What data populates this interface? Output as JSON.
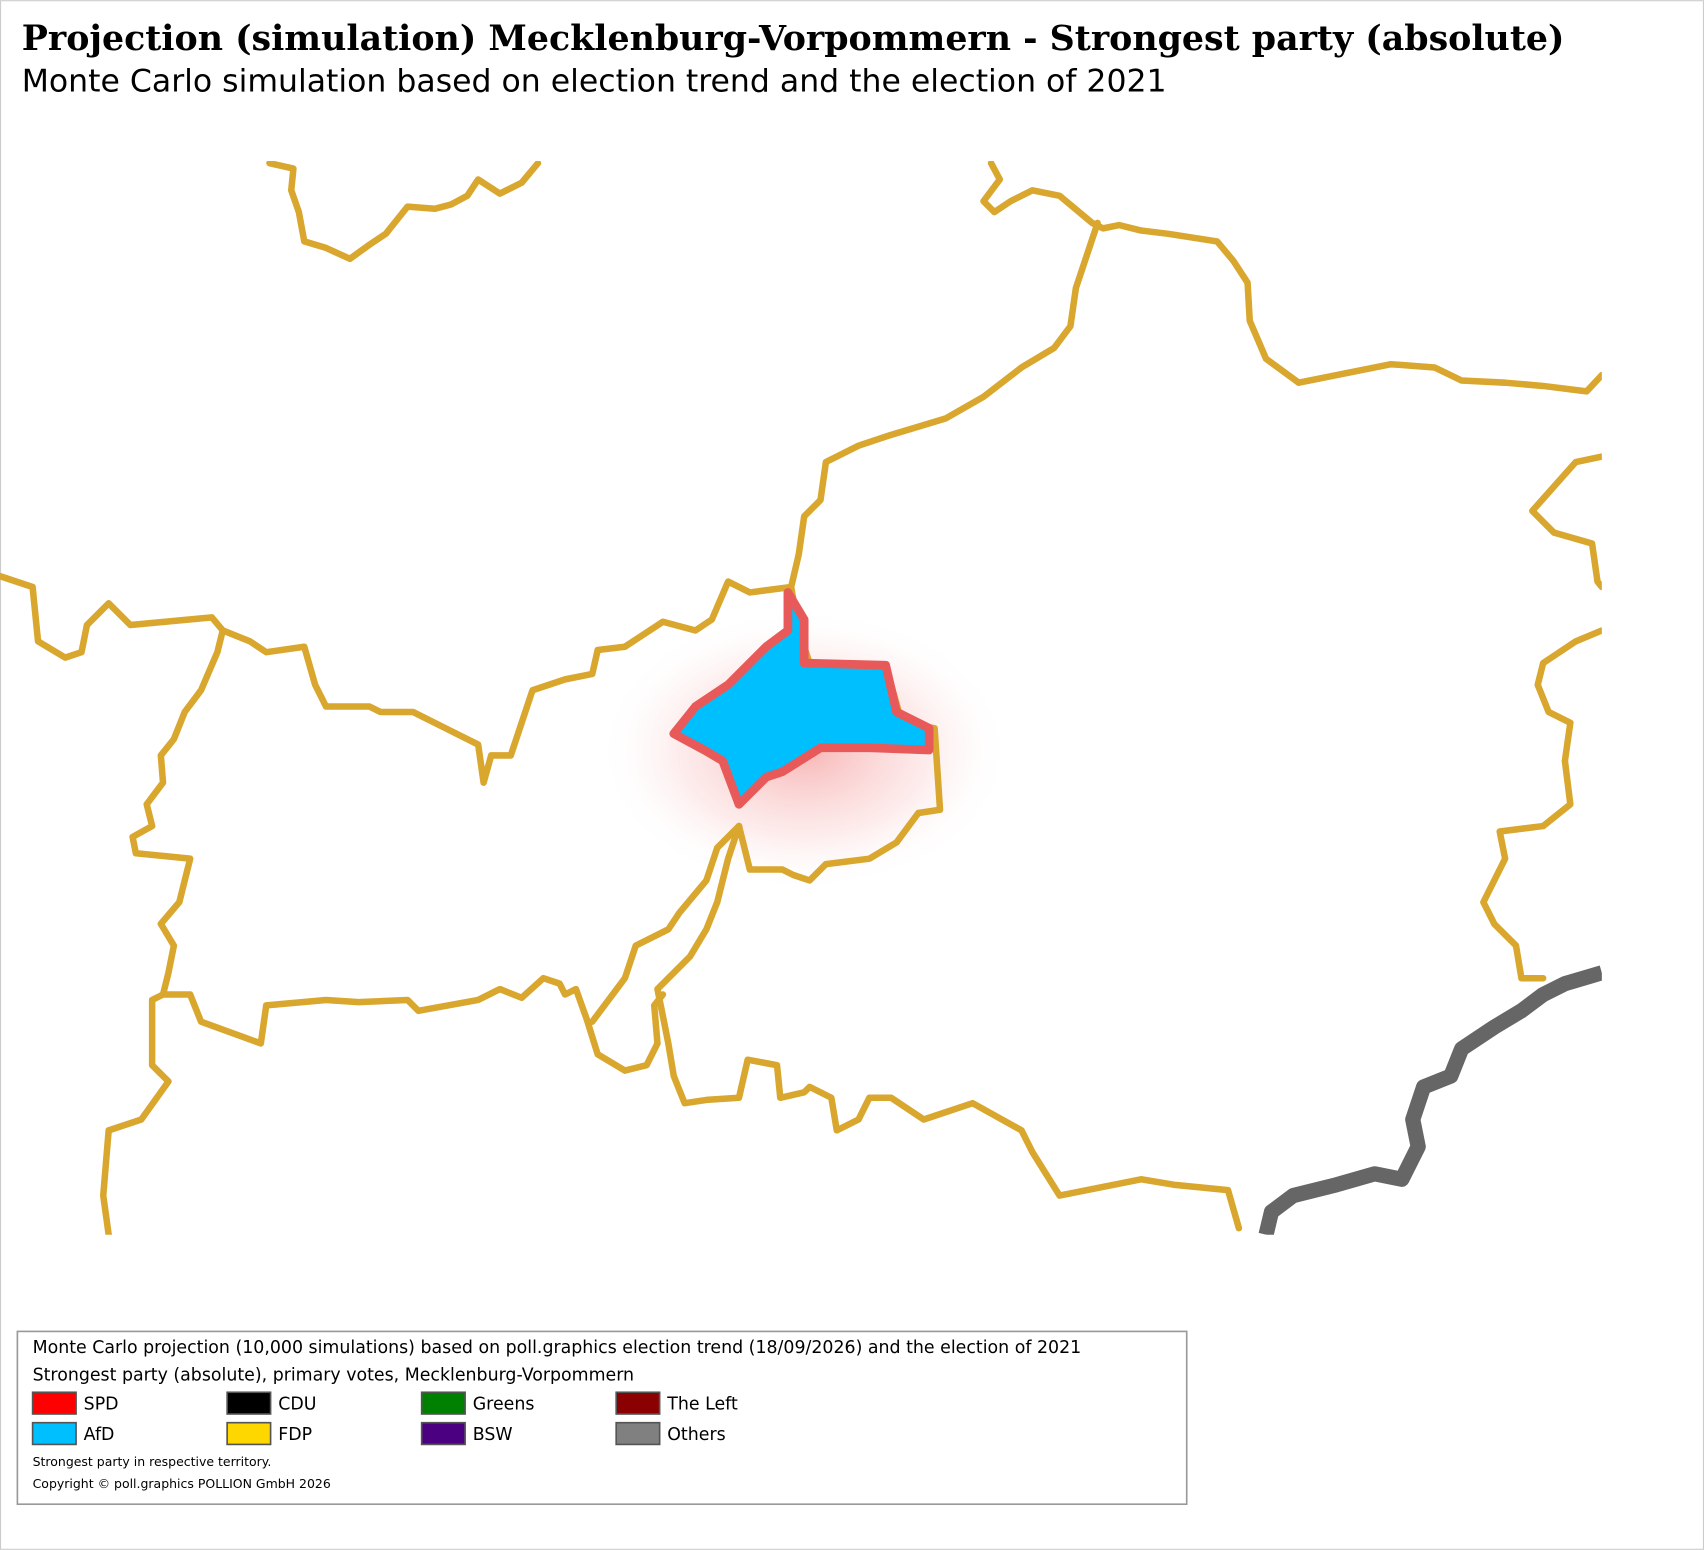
{
  "header": {
    "title": "Projection (simulation) Mecklenburg-Vorpommern - Strongest party (absolute)",
    "subtitle": "Monte Carlo simulation based on election trend and the election of 2021"
  },
  "legend": {
    "lines": [
      "Monte Carlo projection (10,000 simulations) based on poll.graphics election trend (18/09/2026) and the election of 2021",
      "Strongest party (absolute), primary votes, Mecklenburg-Vorpommern"
    ],
    "items": [
      {
        "label": "SPD",
        "color": "#ff0000"
      },
      {
        "label": "CDU",
        "color": "#000000"
      },
      {
        "label": "Greens",
        "color": "#008000"
      },
      {
        "label": "The Left",
        "color": "#8b0000"
      },
      {
        "label": "AfD",
        "color": "#00bfff"
      },
      {
        "label": "FDP",
        "color": "#ffd700"
      },
      {
        "label": "BSW",
        "color": "#4b0082"
      },
      {
        "label": "Others",
        "color": "#808080"
      }
    ],
    "notes": [
      "Strongest party in respective territory.",
      "Copyright © poll.graphics POLLION GmbH 2026"
    ]
  }
}
